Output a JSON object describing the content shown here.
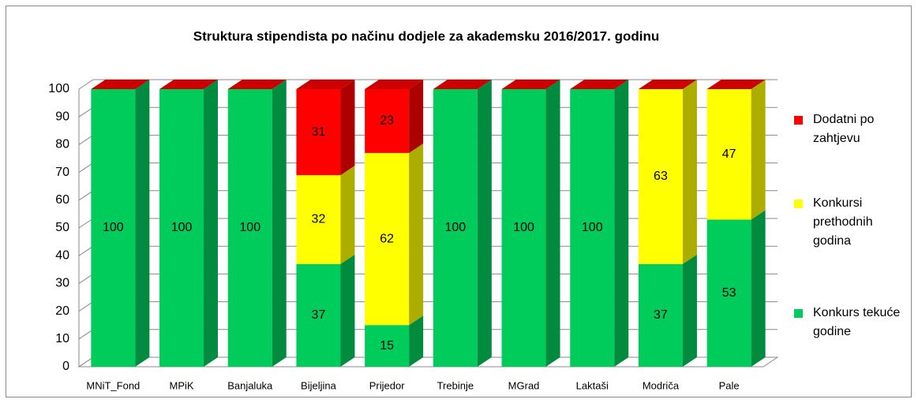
{
  "chart_data": {
    "type": "bar3d_stacked",
    "title": "Struktura stipendista po načinu dodjele za akademsku 2016/2017. godinu",
    "categories": [
      "MNiT_Fond",
      "MPiK",
      "Banjaluka",
      "Bijeljina",
      "Prijedor",
      "Trebinje",
      "MGrad",
      "Laktaši",
      "Modriča",
      "Pale"
    ],
    "series": [
      {
        "name": "Konkurs tekuće godine",
        "color": "#00cc5c",
        "values": [
          100,
          100,
          100,
          37,
          15,
          100,
          100,
          100,
          37,
          53
        ]
      },
      {
        "name": "Konkursi prethodnih godina",
        "color": "#ffff00",
        "values": [
          0,
          0,
          0,
          32,
          62,
          0,
          0,
          0,
          63,
          47
        ]
      },
      {
        "name": "Dodatni po zahtjevu",
        "color": "#ff0000",
        "values": [
          0,
          0,
          0,
          31,
          23,
          0,
          0,
          0,
          0,
          0
        ]
      }
    ],
    "ylim": [
      0,
      100
    ],
    "yticks": [
      0,
      10,
      20,
      30,
      40,
      50,
      60,
      70,
      80,
      90,
      100
    ],
    "grid": true,
    "legend": "right"
  }
}
